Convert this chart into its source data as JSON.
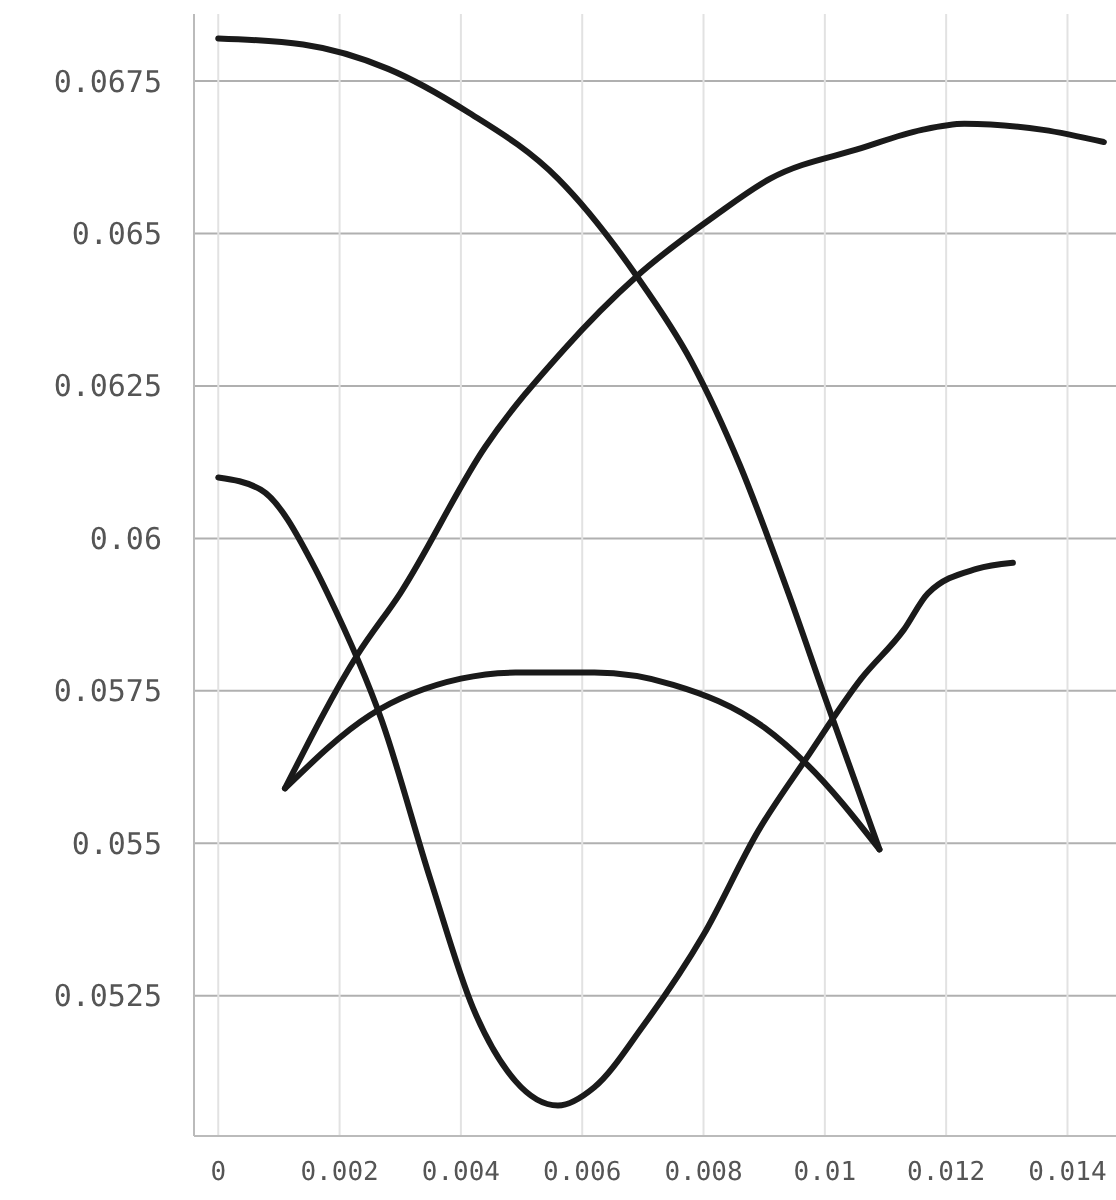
{
  "chart_data": {
    "type": "line",
    "xlim": [
      -0.0004,
      0.0148
    ],
    "ylim": [
      0.0502,
      0.0686
    ],
    "xticks": [
      0,
      0.002,
      0.004,
      0.006,
      0.008,
      0.01,
      0.012,
      0.014
    ],
    "yticks": [
      0.0525,
      0.055,
      0.0575,
      0.06,
      0.0625,
      0.065,
      0.0675
    ],
    "grid": true,
    "marker": "none",
    "line_style": "solid",
    "series": [
      {
        "color": "#1a1a1a",
        "x": [
          0,
          0.0014,
          0.0028,
          0.0041,
          0.0056,
          0.0069,
          0.0078,
          0.0086,
          0.0094,
          0.01,
          0.0109
        ],
        "values": [
          0.0682,
          0.0681,
          0.0677,
          0.067,
          0.0659,
          0.0643,
          0.0629,
          0.0612,
          0.0591,
          0.0574,
          0.0549
        ]
      },
      {
        "color": "#1a1a1a",
        "x": [
          0.0011,
          0.0023,
          0.003,
          0.0044,
          0.0057,
          0.0069,
          0.0082,
          0.0091,
          0.0106,
          0.0116,
          0.0123,
          0.0136,
          0.0146
        ],
        "values": [
          0.0559,
          0.0581,
          0.0591,
          0.0615,
          0.0631,
          0.0643,
          0.0653,
          0.0659,
          0.0664,
          0.0667,
          0.0668,
          0.0667,
          0.0665
        ]
      },
      {
        "color": "#1a1a1a",
        "x": [
          0.0011,
          0.0025,
          0.004,
          0.0049,
          0.0062,
          0.0075,
          0.009,
          0.0097,
          0.0109
        ],
        "values": [
          0.0559,
          0.0571,
          0.0577,
          0.0578,
          0.0578,
          0.0576,
          0.0569,
          0.0563,
          0.0549
        ]
      },
      {
        "color": "#1a1a1a",
        "x": [
          0,
          0.0007,
          0.0016,
          0.0018,
          0.0027,
          0.0035,
          0.0042,
          0.0049,
          0.0056,
          0.0062,
          0.007,
          0.008,
          0.0089,
          0.0097,
          0.0106,
          0.0113,
          0.0117,
          0.0125,
          0.0131
        ],
        "values": [
          0.061,
          0.0608,
          0.0595,
          0.0591,
          0.057,
          0.0544,
          0.0523,
          0.0511,
          0.0507,
          0.051,
          0.052,
          0.0535,
          0.0552,
          0.0564,
          0.0577,
          0.0585,
          0.0591,
          0.0595,
          0.0596
        ]
      }
    ]
  }
}
